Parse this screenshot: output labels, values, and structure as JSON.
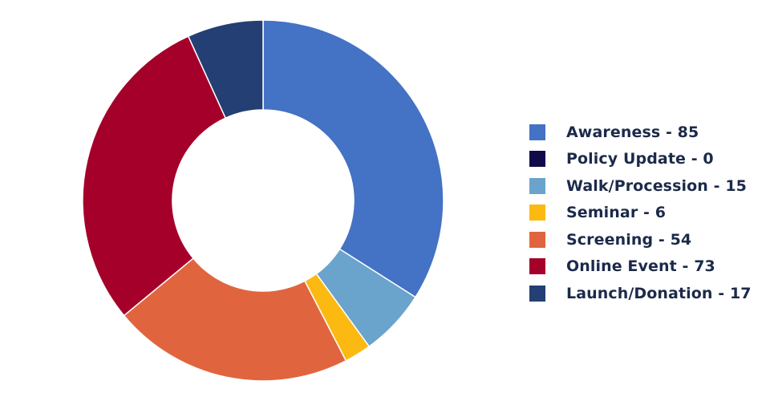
{
  "chart_data": {
    "type": "pie",
    "donut": true,
    "categories": [
      "Awareness",
      "Policy Update",
      "Walk/Procession",
      "Seminar",
      "Screening",
      "Online Event",
      "Launch/Donation"
    ],
    "values": [
      85,
      0,
      15,
      6,
      54,
      73,
      17
    ],
    "colors": [
      "#4472c4",
      "#0f0a4a",
      "#6aa3cb",
      "#fbb911",
      "#e0653f",
      "#a5002a",
      "#233f73"
    ],
    "legend_labels": [
      "Awareness - 85",
      "Policy Update - 0",
      "Walk/Procession - 15",
      "Seminar - 6",
      "Screening - 54",
      "Online Event - 73",
      "Launch/Donation - 17"
    ],
    "legend_position": "right",
    "start_angle": "top",
    "direction": "clockwise"
  }
}
